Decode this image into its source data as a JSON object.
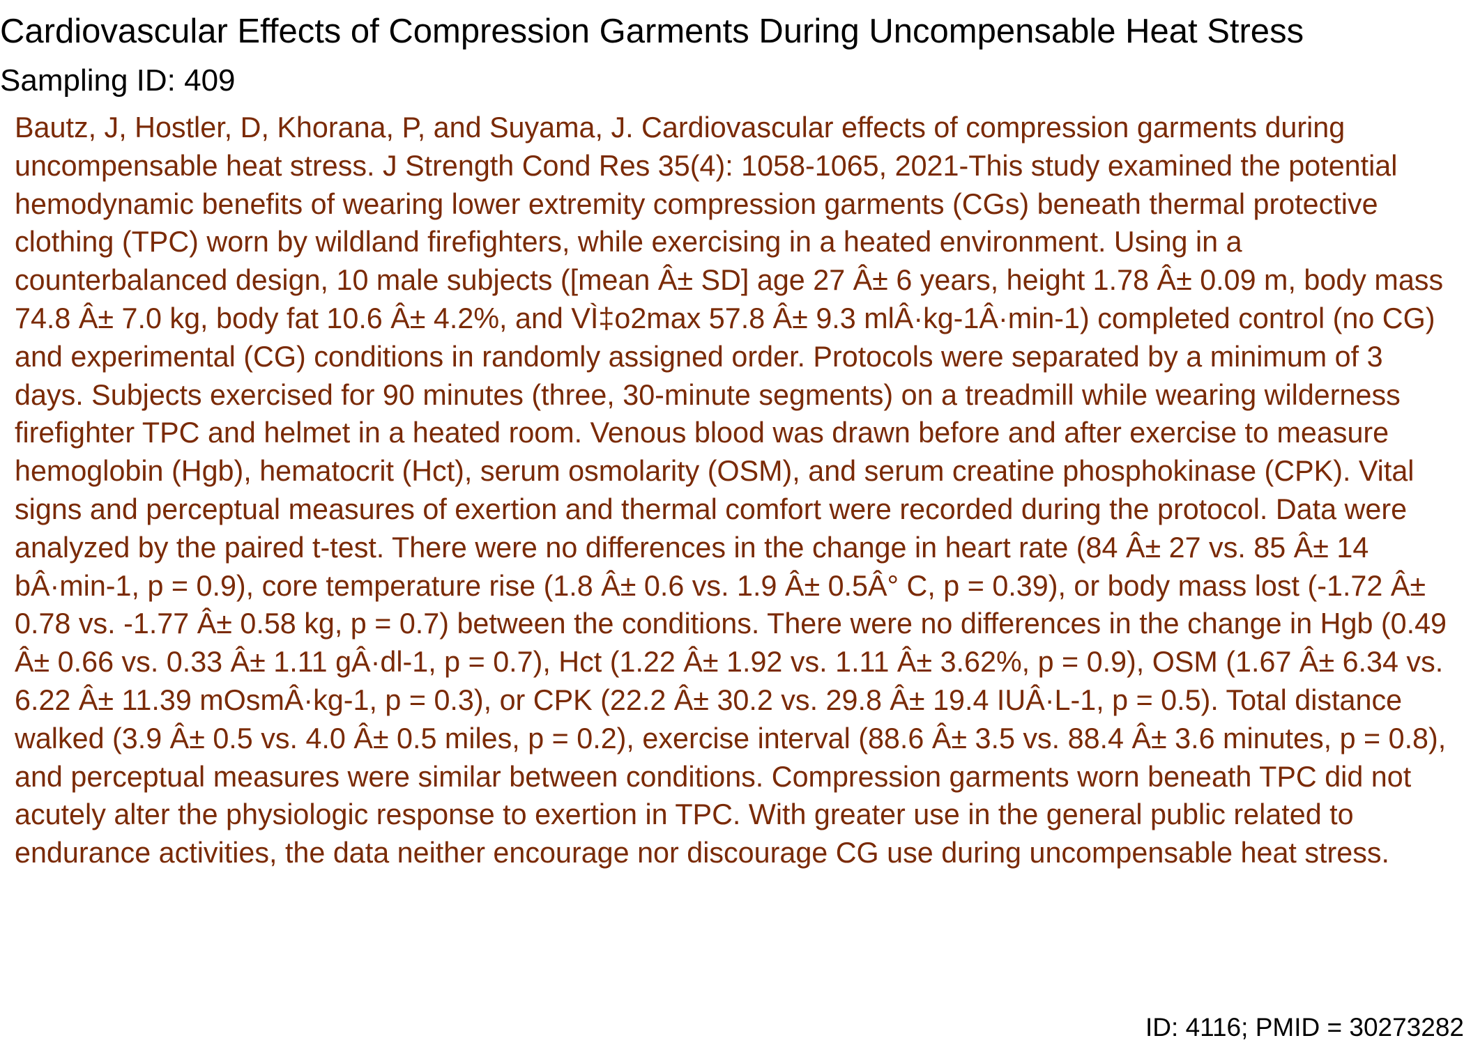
{
  "title": "Cardiovascular Effects of Compression Garments During Uncompensable Heat Stress",
  "sampling_id": "Sampling ID: 409",
  "abstract": "Bautz, J, Hostler, D, Khorana, P, and Suyama, J. Cardiovascular effects of compression garments during uncompensable heat stress. J Strength Cond Res 35(4): 1058-1065, 2021-This study examined the potential hemodynamic benefits of wearing lower extremity compression garments (CGs) beneath thermal protective clothing (TPC) worn by wildland firefighters, while exercising in a heated environment. Using in a counterbalanced design, 10 male subjects ([mean Â± SD] age 27 Â± 6 years, height 1.78 Â± 0.09 m, body mass 74.8 Â± 7.0 kg, body fat 10.6 Â± 4.2%, and VÌ‡o2max 57.8 Â± 9.3 mlÂ·kg-1Â·min-1) completed control (no CG) and experimental (CG) conditions in randomly assigned order. Protocols were separated by a minimum of 3 days. Subjects exercised for 90 minutes (three, 30-minute segments) on a treadmill while wearing wilderness firefighter TPC and helmet in a heated room. Venous blood was drawn before and after exercise to measure hemoglobin (Hgb), hematocrit (Hct), serum osmolarity (OSM), and serum creatine phosphokinase (CPK). Vital signs and perceptual measures of exertion and thermal comfort were recorded during the protocol. Data were analyzed by the paired t-test. There were no differences in the change in heart rate (84 Â± 27 vs. 85 Â± 14 bÂ·min-1, p = 0.9), core temperature rise (1.8 Â± 0.6 vs. 1.9 Â± 0.5Â° C, p = 0.39), or body mass lost (-1.72 Â± 0.78 vs. -1.77 Â± 0.58 kg, p = 0.7) between the conditions. There were no differences in the change in Hgb (0.49 Â± 0.66 vs. 0.33 Â± 1.11 gÂ·dl-1, p = 0.7), Hct (1.22 Â± 1.92 vs. 1.11 Â± 3.62%, p = 0.9), OSM (1.67 Â± 6.34 vs. 6.22 Â± 11.39 mOsmÂ·kg-1, p = 0.3), or CPK (22.2 Â± 30.2 vs. 29.8 Â± 19.4 IUÂ·L-1, p = 0.5). Total distance walked (3.9 Â± 0.5 vs. 4.0 Â± 0.5 miles, p = 0.2), exercise interval (88.6 Â± 3.5 vs. 88.4 Â± 3.6 minutes, p = 0.8), and perceptual measures were similar between conditions. Compression garments worn beneath TPC did not acutely alter the physiologic response to exertion in TPC. With greater use in the general public related to endurance activities, the data neither encourage nor discourage CG use during uncompensable heat stress.",
  "footer": "ID: 4116; PMID = 30273282",
  "colors": {
    "title_text": "#000000",
    "abstract_text": "#7a2a06",
    "background": "#ffffff"
  }
}
